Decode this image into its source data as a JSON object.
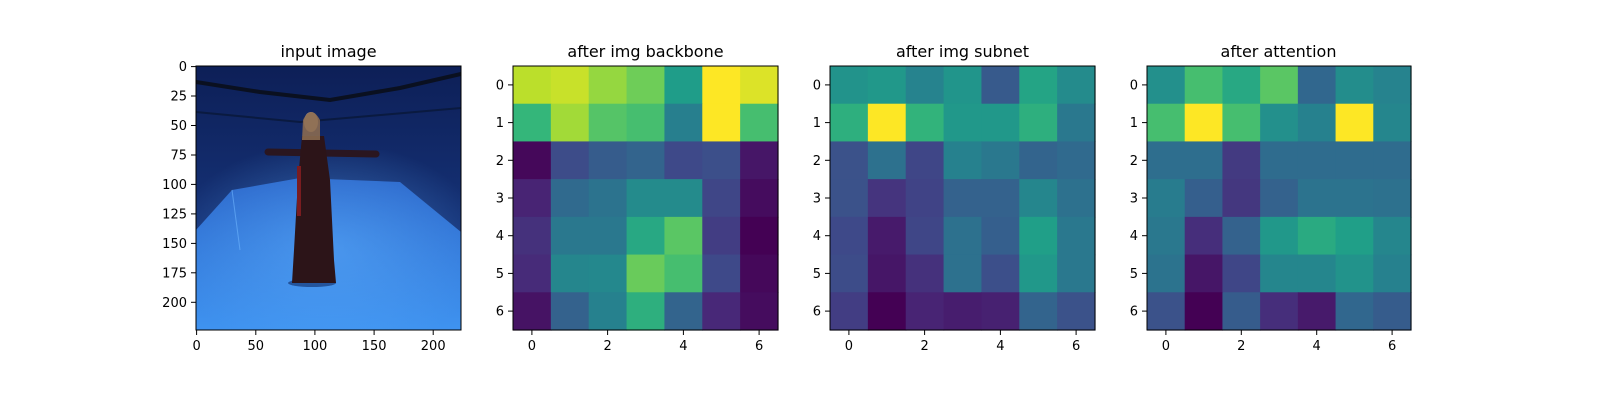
{
  "figure": {
    "background": "#ffffff"
  },
  "colormap": "viridis",
  "chart_data": [
    {
      "type": "image",
      "title": "input image",
      "content": "photo: a person in a long dark dress standing with arms outstretched in a blue-lit motion-capture studio",
      "x_ticks": [
        "0",
        "50",
        "100",
        "150",
        "200"
      ],
      "y_ticks": [
        "0",
        "25",
        "50",
        "75",
        "100",
        "125",
        "150",
        "175",
        "200"
      ],
      "xlim": [
        -0.5,
        223.5
      ],
      "ylim": [
        223.5,
        -0.5
      ]
    },
    {
      "type": "heatmap",
      "title": "after img backbone",
      "x_ticks": [
        "0",
        "2",
        "4",
        "6"
      ],
      "y_ticks": [
        "0",
        "1",
        "2",
        "3",
        "4",
        "5",
        "6"
      ],
      "values": [
        [
          0.9,
          0.92,
          0.84,
          0.78,
          0.55,
          1.0,
          0.95
        ],
        [
          0.66,
          0.86,
          0.73,
          0.7,
          0.43,
          1.0,
          0.7
        ],
        [
          0.02,
          0.23,
          0.29,
          0.32,
          0.22,
          0.24,
          0.06
        ],
        [
          0.1,
          0.34,
          0.38,
          0.48,
          0.48,
          0.21,
          0.03
        ],
        [
          0.14,
          0.4,
          0.4,
          0.6,
          0.74,
          0.18,
          0.0
        ],
        [
          0.12,
          0.46,
          0.47,
          0.77,
          0.7,
          0.22,
          0.02
        ],
        [
          0.05,
          0.31,
          0.44,
          0.63,
          0.32,
          0.11,
          0.03
        ]
      ]
    },
    {
      "type": "heatmap",
      "title": "after img subnet",
      "x_ticks": [
        "0",
        "2",
        "4",
        "6"
      ],
      "y_ticks": [
        "0",
        "1",
        "2",
        "3",
        "4",
        "5",
        "6"
      ],
      "values": [
        [
          0.51,
          0.53,
          0.45,
          0.52,
          0.28,
          0.58,
          0.48
        ],
        [
          0.63,
          1.0,
          0.65,
          0.53,
          0.53,
          0.63,
          0.4
        ],
        [
          0.25,
          0.37,
          0.21,
          0.44,
          0.4,
          0.32,
          0.34
        ],
        [
          0.25,
          0.15,
          0.2,
          0.31,
          0.31,
          0.46,
          0.37
        ],
        [
          0.22,
          0.07,
          0.21,
          0.37,
          0.3,
          0.56,
          0.4
        ],
        [
          0.23,
          0.06,
          0.14,
          0.37,
          0.24,
          0.53,
          0.4
        ],
        [
          0.18,
          0.0,
          0.1,
          0.08,
          0.09,
          0.32,
          0.25
        ]
      ]
    },
    {
      "type": "heatmap",
      "title": "after attention",
      "x_ticks": [
        "0",
        "2",
        "4",
        "6"
      ],
      "y_ticks": [
        "0",
        "1",
        "2",
        "3",
        "4",
        "5",
        "6"
      ],
      "values": [
        [
          0.5,
          0.7,
          0.6,
          0.74,
          0.33,
          0.49,
          0.45
        ],
        [
          0.7,
          1.0,
          0.7,
          0.5,
          0.44,
          1.0,
          0.46
        ],
        [
          0.36,
          0.36,
          0.17,
          0.35,
          0.35,
          0.35,
          0.35
        ],
        [
          0.42,
          0.3,
          0.16,
          0.31,
          0.38,
          0.38,
          0.37
        ],
        [
          0.4,
          0.13,
          0.31,
          0.53,
          0.61,
          0.56,
          0.46
        ],
        [
          0.38,
          0.06,
          0.21,
          0.46,
          0.46,
          0.51,
          0.44
        ],
        [
          0.25,
          0.0,
          0.29,
          0.13,
          0.07,
          0.33,
          0.29
        ]
      ]
    }
  ]
}
